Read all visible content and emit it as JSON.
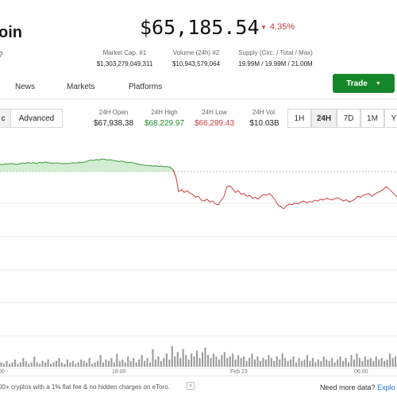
{
  "header": {
    "coin_name": "Bitcoin",
    "coin_name_visible": "oin",
    "help_mark": "?",
    "price": "$65,185.54",
    "change": "4.35%",
    "change_color": "#d23b3b"
  },
  "stats": [
    {
      "label": "Market Cap. #1",
      "value": "$1,303,279,049,311"
    },
    {
      "label": "Volume (24h) #2",
      "value": "$10,943,579,064"
    },
    {
      "label": "Supply (Circ. / Total / Max)",
      "value": "19.99M / 19.99M / 21.00M"
    }
  ],
  "tabs": {
    "news": "News",
    "markets": "Markets",
    "platforms": "Platforms"
  },
  "trade_button": {
    "label": "Trade",
    "color": "#16862b"
  },
  "chart_toggle": {
    "basic_visible": "c",
    "advanced": "Advanced"
  },
  "ohlc": [
    {
      "label": "24H Open",
      "value": "$67,938.38",
      "color": "#222222"
    },
    {
      "label": "24H High",
      "value": "$68,229.97",
      "color": "#1f8a2e"
    },
    {
      "label": "24H Low",
      "value": "$66,299.43",
      "color": "#d23b3b"
    },
    {
      "label": "24H Vol.",
      "value": "$10.03B",
      "color": "#222222"
    }
  ],
  "ranges": [
    "1H",
    "24H",
    "7D",
    "1M",
    "YT"
  ],
  "active_range": "24H",
  "chart_data": {
    "type": "line",
    "series": [
      {
        "color_up": "#3a9a3a",
        "color_down": "#d23b3b",
        "values": [
          0.35,
          0.38,
          0.36,
          0.4,
          0.39,
          0.42,
          0.4,
          0.37,
          0.41,
          0.45,
          0.43,
          0.47,
          0.44,
          0.46,
          0.42,
          0.48,
          0.46,
          0.5,
          0.47,
          0.45,
          0.43,
          0.46,
          0.44,
          0.4,
          0.43,
          0.41,
          0.44,
          0.46,
          0.45,
          0.48,
          0.47,
          0.5,
          0.55,
          0.6,
          0.58,
          0.63,
          0.61,
          0.66,
          0.64,
          0.6,
          0.62,
          0.58,
          0.56,
          0.52,
          0.55,
          0.5,
          0.47,
          0.49,
          0.45,
          0.42,
          0.38,
          0.35,
          0.34,
          0.3,
          0.32,
          0.28,
          0.3,
          0.27,
          0.29,
          0.25,
          0.26,
          0.22,
          0.1,
          -0.25,
          -1.05,
          -0.95,
          -1.1,
          -1.0,
          -1.15,
          -1.2,
          -1.35,
          -1.3,
          -1.5,
          -1.55,
          -1.45,
          -1.6,
          -1.55,
          -1.7,
          -1.75,
          -1.5,
          -1.3,
          -0.8,
          -0.75,
          -0.9,
          -1.1,
          -1.0,
          -1.2,
          -1.15,
          -1.3,
          -1.25,
          -1.4,
          -1.35,
          -1.45,
          -1.3,
          -1.2,
          -1.25,
          -1.15,
          -1.3,
          -1.5,
          -1.75,
          -1.85,
          -1.95,
          -1.8,
          -1.7,
          -1.75,
          -1.65,
          -1.7,
          -1.6,
          -1.55,
          -1.65,
          -1.58,
          -1.6,
          -1.5,
          -1.55,
          -1.45,
          -1.5,
          -1.4,
          -1.45,
          -1.5,
          -1.42,
          -1.38,
          -1.45,
          -1.55,
          -1.48,
          -1.6,
          -1.55,
          -1.45,
          -1.3,
          -1.35,
          -1.25,
          -1.2,
          -1.15,
          -1.3,
          -1.2,
          -1.1,
          -1.05,
          -0.95,
          -0.8,
          -0.9,
          -1.05,
          -1.2,
          -1.35,
          -1.3
        ]
      }
    ],
    "baseline": 0,
    "x_ticks": [
      "00",
      "18:00",
      "Feb 23",
      "06:00"
    ],
    "volume": [
      3,
      2,
      4,
      2,
      3,
      5,
      2,
      3,
      6,
      4,
      2,
      3,
      7,
      3,
      2,
      4,
      3,
      5,
      2,
      3,
      4,
      6,
      3,
      2,
      5,
      3,
      4,
      2,
      3,
      5,
      4,
      3,
      6,
      2,
      3,
      4,
      8,
      3,
      5,
      4,
      6,
      3,
      9,
      4,
      5,
      3,
      7,
      4,
      6,
      3,
      5,
      8,
      4,
      6,
      3,
      12,
      5,
      7,
      4,
      6,
      9,
      5,
      14,
      7,
      10,
      6,
      12,
      8,
      5,
      9,
      7,
      11,
      6,
      10,
      13,
      8,
      6,
      9,
      7,
      5,
      8,
      10,
      6,
      7,
      9,
      5,
      8,
      6,
      7,
      4,
      6,
      9,
      5,
      7,
      4,
      6,
      5,
      8,
      6,
      4,
      7,
      5,
      9,
      6,
      4,
      5,
      7,
      3,
      6,
      4,
      5,
      8,
      4,
      6,
      3,
      5,
      4,
      7,
      5,
      4,
      6,
      3,
      5,
      7,
      4,
      6,
      3,
      8,
      5,
      9,
      6,
      4,
      7,
      5,
      6,
      4,
      7,
      5,
      6,
      4,
      5,
      9,
      6,
      7
    ]
  },
  "footer": {
    "promo": "00+ cryptos with a 1% flat fee & no hidden charges on eToro.",
    "close": "×",
    "more_prefix": "Need more data?",
    "more_link": "Explo"
  }
}
